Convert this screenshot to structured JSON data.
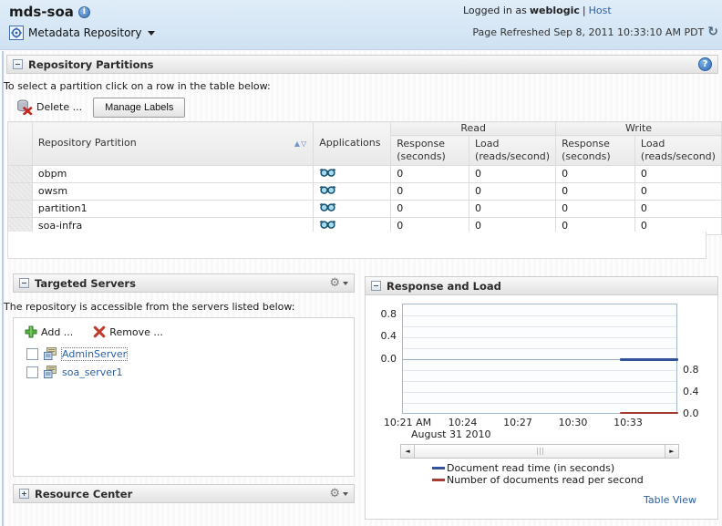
{
  "banner": {
    "title": "mds-soa",
    "context_menu_label": "Metadata Repository",
    "logged_in_prefix": "Logged in as",
    "user": "weblogic",
    "separator": "|",
    "host_link": "Host",
    "refresh_label": "Page Refreshed Sep 8, 2011 10:33:10 AM PDT"
  },
  "icons": {
    "info": "i",
    "help": "?",
    "refresh": "↻",
    "gear": "⚙",
    "sort_asc": "▲",
    "sort_desc": "▽",
    "arrow_left": "◄",
    "arrow_right": "►"
  },
  "partitions": {
    "title": "Repository Partitions",
    "instruction": "To select a partition click on a row in the table below:",
    "delete_button": "Delete ...",
    "manage_labels_button": "Manage Labels",
    "table": {
      "col_partition": "Repository Partition",
      "col_applications": "Applications",
      "group_read": "Read",
      "group_write": "Write",
      "col_response": "Response (seconds)",
      "col_load": "Load (reads/second)",
      "rows": [
        {
          "name": "obpm",
          "read_response": "0",
          "read_load": "0",
          "write_response": "0",
          "write_load": "0"
        },
        {
          "name": "owsm",
          "read_response": "0",
          "read_load": "0",
          "write_response": "0",
          "write_load": "0"
        },
        {
          "name": "partition1",
          "read_response": "0",
          "read_load": "0",
          "write_response": "0",
          "write_load": "0"
        },
        {
          "name": "soa-infra",
          "read_response": "0",
          "read_load": "0",
          "write_response": "0",
          "write_load": "0"
        }
      ]
    }
  },
  "targeted_servers": {
    "title": "Targeted Servers",
    "description": "The repository is accessible from the servers listed below:",
    "add_button": "Add ...",
    "remove_button": "Remove ...",
    "servers": [
      "AdminServer",
      "soa_server1"
    ]
  },
  "response_load": {
    "title": "Response and Load",
    "table_view_link": "Table View"
  },
  "chart_data": {
    "type": "line",
    "title": "Response and Load",
    "x": {
      "tick_labels": [
        "10:21 AM",
        "10:24",
        "10:27",
        "10:30",
        "10:33"
      ],
      "date_label": "August 31 2010",
      "start_time": "10:21",
      "minutes_per_tick": 3
    },
    "left_axis": {
      "tick_labels": [
        "0.8",
        "0.4",
        "0.0"
      ],
      "range": [
        0,
        1.0
      ],
      "label_series": "Document read time (in seconds)"
    },
    "right_axis": {
      "tick_labels": [
        "0.8",
        "0.4",
        "0.0"
      ],
      "range": [
        0,
        1.0
      ],
      "label_series": "Number of documents read per second"
    },
    "grid": true,
    "legend_position": "bottom",
    "series": [
      {
        "name": "Document read time (in seconds)",
        "color": "#31539b",
        "axis": "left",
        "thickness": 3,
        "points": [
          {
            "t": "10:32:30",
            "v": 0.0
          },
          {
            "t": "10:36:00",
            "v": 0.0
          }
        ]
      },
      {
        "name": "Number of documents read per second",
        "color": "#a43c32",
        "axis": "right",
        "thickness": 2,
        "points": [
          {
            "t": "10:32:30",
            "v": 0.0
          },
          {
            "t": "10:36:00",
            "v": 0.0
          }
        ]
      }
    ]
  },
  "resource_center": {
    "title": "Resource Center"
  }
}
